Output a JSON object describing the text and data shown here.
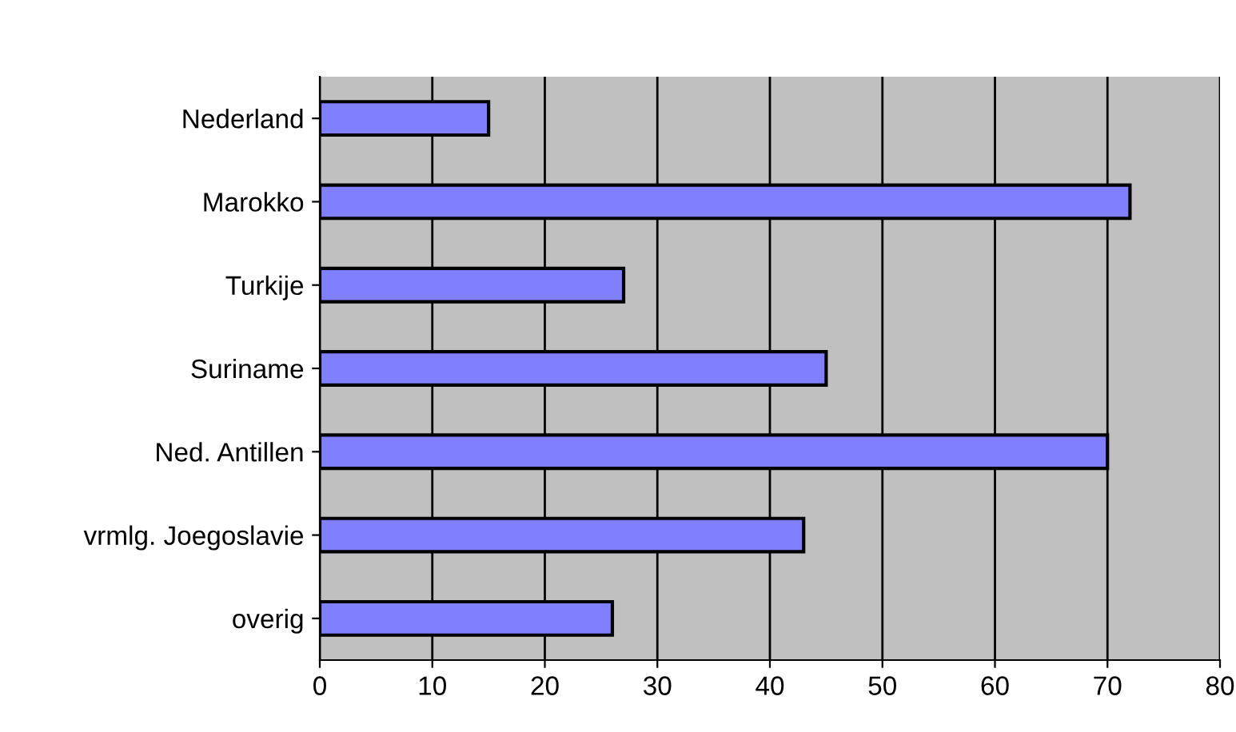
{
  "chart_data": {
    "type": "bar",
    "orientation": "horizontal",
    "categories": [
      "Nederland",
      "Marokko",
      "Turkije",
      "Suriname",
      "Ned. Antillen",
      "vrmlg. Joegoslavie",
      "overig"
    ],
    "values": [
      15,
      72,
      27,
      45,
      70,
      43,
      26
    ],
    "color": "#8080ff",
    "xlim": [
      0,
      80
    ],
    "xticks": [
      0,
      10,
      20,
      30,
      40,
      50,
      60,
      70,
      80
    ],
    "grid": "x",
    "legend": false
  }
}
